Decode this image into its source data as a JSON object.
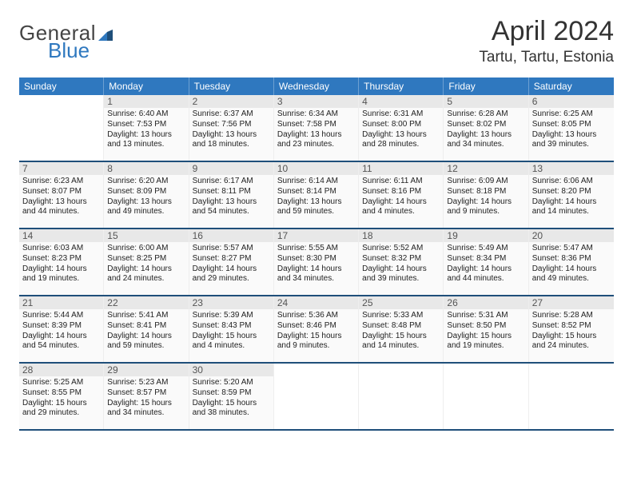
{
  "brand": {
    "name_part1": "General",
    "name_part2": "Blue"
  },
  "title": "April 2024",
  "location": "Tartu, Tartu, Estonia",
  "colors": {
    "accent": "#2f78bf",
    "rule": "#1f4f7a",
    "bg": "#ffffff",
    "cell_bg": "#fafafa",
    "daybar": "#e8e8e8"
  },
  "weekdays": [
    "Sunday",
    "Monday",
    "Tuesday",
    "Wednesday",
    "Thursday",
    "Friday",
    "Saturday"
  ],
  "weeks": [
    [
      null,
      {
        "n": "1",
        "sr": "Sunrise: 6:40 AM",
        "ss": "Sunset: 7:53 PM",
        "d1": "Daylight: 13 hours",
        "d2": "and 13 minutes."
      },
      {
        "n": "2",
        "sr": "Sunrise: 6:37 AM",
        "ss": "Sunset: 7:56 PM",
        "d1": "Daylight: 13 hours",
        "d2": "and 18 minutes."
      },
      {
        "n": "3",
        "sr": "Sunrise: 6:34 AM",
        "ss": "Sunset: 7:58 PM",
        "d1": "Daylight: 13 hours",
        "d2": "and 23 minutes."
      },
      {
        "n": "4",
        "sr": "Sunrise: 6:31 AM",
        "ss": "Sunset: 8:00 PM",
        "d1": "Daylight: 13 hours",
        "d2": "and 28 minutes."
      },
      {
        "n": "5",
        "sr": "Sunrise: 6:28 AM",
        "ss": "Sunset: 8:02 PM",
        "d1": "Daylight: 13 hours",
        "d2": "and 34 minutes."
      },
      {
        "n": "6",
        "sr": "Sunrise: 6:25 AM",
        "ss": "Sunset: 8:05 PM",
        "d1": "Daylight: 13 hours",
        "d2": "and 39 minutes."
      }
    ],
    [
      {
        "n": "7",
        "sr": "Sunrise: 6:23 AM",
        "ss": "Sunset: 8:07 PM",
        "d1": "Daylight: 13 hours",
        "d2": "and 44 minutes."
      },
      {
        "n": "8",
        "sr": "Sunrise: 6:20 AM",
        "ss": "Sunset: 8:09 PM",
        "d1": "Daylight: 13 hours",
        "d2": "and 49 minutes."
      },
      {
        "n": "9",
        "sr": "Sunrise: 6:17 AM",
        "ss": "Sunset: 8:11 PM",
        "d1": "Daylight: 13 hours",
        "d2": "and 54 minutes."
      },
      {
        "n": "10",
        "sr": "Sunrise: 6:14 AM",
        "ss": "Sunset: 8:14 PM",
        "d1": "Daylight: 13 hours",
        "d2": "and 59 minutes."
      },
      {
        "n": "11",
        "sr": "Sunrise: 6:11 AM",
        "ss": "Sunset: 8:16 PM",
        "d1": "Daylight: 14 hours",
        "d2": "and 4 minutes."
      },
      {
        "n": "12",
        "sr": "Sunrise: 6:09 AM",
        "ss": "Sunset: 8:18 PM",
        "d1": "Daylight: 14 hours",
        "d2": "and 9 minutes."
      },
      {
        "n": "13",
        "sr": "Sunrise: 6:06 AM",
        "ss": "Sunset: 8:20 PM",
        "d1": "Daylight: 14 hours",
        "d2": "and 14 minutes."
      }
    ],
    [
      {
        "n": "14",
        "sr": "Sunrise: 6:03 AM",
        "ss": "Sunset: 8:23 PM",
        "d1": "Daylight: 14 hours",
        "d2": "and 19 minutes."
      },
      {
        "n": "15",
        "sr": "Sunrise: 6:00 AM",
        "ss": "Sunset: 8:25 PM",
        "d1": "Daylight: 14 hours",
        "d2": "and 24 minutes."
      },
      {
        "n": "16",
        "sr": "Sunrise: 5:57 AM",
        "ss": "Sunset: 8:27 PM",
        "d1": "Daylight: 14 hours",
        "d2": "and 29 minutes."
      },
      {
        "n": "17",
        "sr": "Sunrise: 5:55 AM",
        "ss": "Sunset: 8:30 PM",
        "d1": "Daylight: 14 hours",
        "d2": "and 34 minutes."
      },
      {
        "n": "18",
        "sr": "Sunrise: 5:52 AM",
        "ss": "Sunset: 8:32 PM",
        "d1": "Daylight: 14 hours",
        "d2": "and 39 minutes."
      },
      {
        "n": "19",
        "sr": "Sunrise: 5:49 AM",
        "ss": "Sunset: 8:34 PM",
        "d1": "Daylight: 14 hours",
        "d2": "and 44 minutes."
      },
      {
        "n": "20",
        "sr": "Sunrise: 5:47 AM",
        "ss": "Sunset: 8:36 PM",
        "d1": "Daylight: 14 hours",
        "d2": "and 49 minutes."
      }
    ],
    [
      {
        "n": "21",
        "sr": "Sunrise: 5:44 AM",
        "ss": "Sunset: 8:39 PM",
        "d1": "Daylight: 14 hours",
        "d2": "and 54 minutes."
      },
      {
        "n": "22",
        "sr": "Sunrise: 5:41 AM",
        "ss": "Sunset: 8:41 PM",
        "d1": "Daylight: 14 hours",
        "d2": "and 59 minutes."
      },
      {
        "n": "23",
        "sr": "Sunrise: 5:39 AM",
        "ss": "Sunset: 8:43 PM",
        "d1": "Daylight: 15 hours",
        "d2": "and 4 minutes."
      },
      {
        "n": "24",
        "sr": "Sunrise: 5:36 AM",
        "ss": "Sunset: 8:46 PM",
        "d1": "Daylight: 15 hours",
        "d2": "and 9 minutes."
      },
      {
        "n": "25",
        "sr": "Sunrise: 5:33 AM",
        "ss": "Sunset: 8:48 PM",
        "d1": "Daylight: 15 hours",
        "d2": "and 14 minutes."
      },
      {
        "n": "26",
        "sr": "Sunrise: 5:31 AM",
        "ss": "Sunset: 8:50 PM",
        "d1": "Daylight: 15 hours",
        "d2": "and 19 minutes."
      },
      {
        "n": "27",
        "sr": "Sunrise: 5:28 AM",
        "ss": "Sunset: 8:52 PM",
        "d1": "Daylight: 15 hours",
        "d2": "and 24 minutes."
      }
    ],
    [
      {
        "n": "28",
        "sr": "Sunrise: 5:25 AM",
        "ss": "Sunset: 8:55 PM",
        "d1": "Daylight: 15 hours",
        "d2": "and 29 minutes."
      },
      {
        "n": "29",
        "sr": "Sunrise: 5:23 AM",
        "ss": "Sunset: 8:57 PM",
        "d1": "Daylight: 15 hours",
        "d2": "and 34 minutes."
      },
      {
        "n": "30",
        "sr": "Sunrise: 5:20 AM",
        "ss": "Sunset: 8:59 PM",
        "d1": "Daylight: 15 hours",
        "d2": "and 38 minutes."
      },
      null,
      null,
      null,
      null
    ]
  ]
}
